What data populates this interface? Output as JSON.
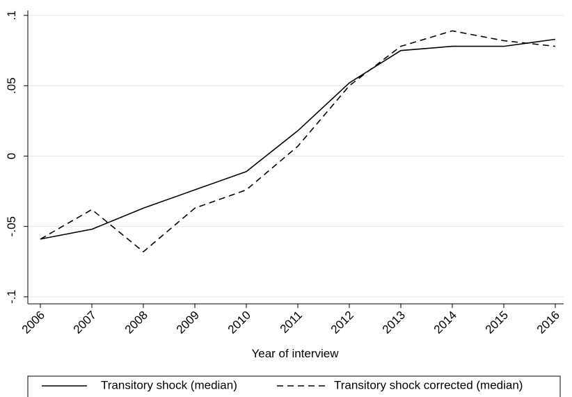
{
  "chart_data": {
    "type": "line",
    "x_label": "Year of interview",
    "categories": [
      "2006",
      "2007",
      "2008",
      "2009",
      "2010",
      "2011",
      "2012",
      "2013",
      "2014",
      "2015",
      "2016"
    ],
    "series": [
      {
        "name": "Transitory shock (median)",
        "color": "#000000",
        "dash": "solid",
        "values": [
          -0.059,
          -0.052,
          -0.037,
          -0.024,
          -0.011,
          0.018,
          0.052,
          0.075,
          0.078,
          0.078,
          0.083
        ]
      },
      {
        "name": "Transitory shock corrected (median)",
        "color": "#000000",
        "dash": "dashed",
        "values": [
          -0.059,
          -0.038,
          -0.068,
          -0.037,
          -0.024,
          0.007,
          0.05,
          0.078,
          0.089,
          0.082,
          0.078
        ]
      }
    ],
    "ylim": [
      -0.105,
      0.1035
    ],
    "yticks": [
      {
        "value": -0.1,
        "label": "-.1"
      },
      {
        "value": -0.05,
        "label": "-.05"
      },
      0,
      {
        "value": 0.05,
        "label": ".05"
      },
      {
        "value": 0.1,
        "label": ".1"
      }
    ],
    "grid": true,
    "legend": "bottom"
  }
}
